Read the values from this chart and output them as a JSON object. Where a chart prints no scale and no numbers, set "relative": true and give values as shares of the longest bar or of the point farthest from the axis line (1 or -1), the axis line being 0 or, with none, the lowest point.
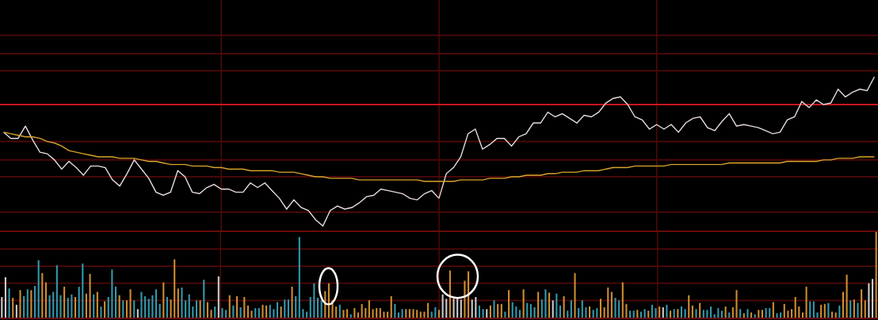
{
  "chart_data": [
    {
      "type": "line",
      "relative": true,
      "grid": "x",
      "categories": [
        null,
        null,
        null,
        null,
        null,
        null,
        null,
        null,
        null,
        null,
        null,
        null,
        null,
        null,
        null,
        null,
        null,
        null,
        null,
        null,
        null,
        null,
        null,
        null,
        null,
        null,
        null,
        null,
        null,
        null,
        null,
        null,
        null,
        null,
        null,
        null,
        null,
        null,
        null,
        null,
        null,
        null,
        null,
        null,
        null,
        null,
        null,
        null,
        null,
        null,
        null,
        null,
        null,
        null,
        null,
        null,
        null,
        null,
        null,
        null,
        null,
        null,
        null,
        null,
        null,
        null,
        null,
        null,
        null,
        null,
        null,
        null,
        null,
        null,
        null,
        null,
        null,
        null,
        null,
        null,
        null,
        null,
        null,
        null,
        null,
        null,
        null,
        null,
        null,
        null,
        null,
        null,
        null,
        null,
        null,
        null,
        null,
        null,
        null,
        null,
        null,
        null,
        null,
        null,
        null,
        null,
        null,
        null,
        null,
        null,
        null,
        null,
        null,
        null,
        null,
        null,
        null,
        null,
        null,
        null,
        null
      ],
      "series": [
        {
          "color": "#e8dada",
          "values": [
            0.64,
            0.6,
            0.6,
            0.68,
            0.59,
            0.51,
            0.5,
            0.46,
            0.4,
            0.45,
            0.41,
            0.36,
            0.42,
            0.42,
            0.41,
            0.33,
            0.29,
            0.37,
            0.46,
            0.4,
            0.34,
            0.25,
            0.23,
            0.25,
            0.39,
            0.35,
            0.25,
            0.24,
            0.28,
            0.3,
            0.27,
            0.27,
            0.25,
            0.25,
            0.31,
            0.28,
            0.31,
            0.26,
            0.21,
            0.14,
            0.2,
            0.15,
            0.13,
            0.07,
            0.03,
            0.13,
            0.16,
            0.14,
            0.15,
            0.18,
            0.22,
            0.23,
            0.27,
            0.26,
            0.25,
            0.24,
            0.21,
            0.2,
            0.24,
            0.26,
            0.21,
            0.37,
            0.41,
            0.48,
            0.63,
            0.66,
            0.53,
            0.56,
            0.6,
            0.6,
            0.55,
            0.61,
            0.63,
            0.7,
            0.7,
            0.77,
            0.74,
            0.76,
            0.73,
            0.7,
            0.75,
            0.74,
            0.77,
            0.83,
            0.86,
            0.87,
            0.82,
            0.74,
            0.72,
            0.66,
            0.69,
            0.66,
            0.69,
            0.64,
            0.7,
            0.73,
            0.74,
            0.67,
            0.65,
            0.71,
            0.76,
            0.68,
            0.69,
            0.68,
            0.67,
            0.65,
            0.63,
            0.64,
            0.72,
            0.74,
            0.84,
            0.8,
            0.85,
            0.82,
            0.83,
            0.92,
            0.87,
            0.9,
            0.92,
            0.91,
            1
          ]
        },
        {
          "color": "#d9a42a",
          "values": [
            0.64,
            0.63,
            0.62,
            0.61,
            0.61,
            0.6,
            0.58,
            0.57,
            0.55,
            0.52,
            0.51,
            0.5,
            0.49,
            0.48,
            0.48,
            0.48,
            0.47,
            0.47,
            0.47,
            0.46,
            0.45,
            0.45,
            0.44,
            0.43,
            0.43,
            0.43,
            0.42,
            0.42,
            0.42,
            0.41,
            0.41,
            0.4,
            0.4,
            0.4,
            0.39,
            0.39,
            0.39,
            0.39,
            0.38,
            0.38,
            0.38,
            0.37,
            0.36,
            0.35,
            0.35,
            0.34,
            0.34,
            0.34,
            0.34,
            0.33,
            0.33,
            0.33,
            0.33,
            0.33,
            0.33,
            0.33,
            0.33,
            0.33,
            0.32,
            0.32,
            0.32,
            0.32,
            0.32,
            0.33,
            0.33,
            0.33,
            0.33,
            0.34,
            0.34,
            0.34,
            0.35,
            0.35,
            0.36,
            0.36,
            0.36,
            0.37,
            0.37,
            0.38,
            0.38,
            0.38,
            0.39,
            0.39,
            0.39,
            0.4,
            0.41,
            0.41,
            0.41,
            0.42,
            0.42,
            0.42,
            0.42,
            0.42,
            0.43,
            0.43,
            0.43,
            0.43,
            0.43,
            0.43,
            0.43,
            0.43,
            0.44,
            0.44,
            0.44,
            0.44,
            0.44,
            0.44,
            0.44,
            0.44,
            0.45,
            0.45,
            0.45,
            0.45,
            0.45,
            0.46,
            0.46,
            0.47,
            0.47,
            0.47,
            0.48,
            0.48,
            0.48
          ]
        }
      ],
      "ref_lines": [
        {
          "axis": "y",
          "value": 0.82,
          "color": "#c8161d"
        },
        {
          "axis": "y",
          "value": 1.27,
          "color": "#520909"
        },
        {
          "axis": "y",
          "value": 1.15,
          "color": "#520909"
        },
        {
          "axis": "y",
          "value": 1.04,
          "color": "#520909"
        },
        {
          "axis": "y",
          "value": 0.58,
          "color": "#520909"
        },
        {
          "axis": "y",
          "value": 0.46,
          "color": "#520909"
        },
        {
          "axis": "y",
          "value": 0.35,
          "color": "#520909"
        },
        {
          "axis": "y",
          "value": 0.12,
          "color": "#520909"
        }
      ]
    },
    {
      "type": "bar",
      "relative": true,
      "grid": "x",
      "categories": [
        null,
        null,
        null,
        null,
        null,
        null,
        null,
        null,
        null,
        null,
        null,
        null,
        null,
        null,
        null,
        null,
        null,
        null,
        null,
        null,
        null,
        null,
        null,
        null,
        null,
        null,
        null,
        null,
        null,
        null,
        null,
        null,
        null,
        null,
        null,
        null,
        null,
        null,
        null,
        null,
        null,
        null,
        null,
        null,
        null,
        null,
        null,
        null,
        null,
        null,
        null,
        null,
        null,
        null,
        null,
        null,
        null,
        null,
        null,
        null,
        null,
        null,
        null,
        null,
        null,
        null,
        null,
        null,
        null,
        null,
        null,
        null,
        null,
        null,
        null,
        null,
        null,
        null,
        null,
        null,
        null,
        null,
        null,
        null,
        null,
        null,
        null,
        null,
        null,
        null,
        null,
        null,
        null,
        null,
        null,
        null,
        null,
        null,
        null,
        null,
        null,
        null,
        null,
        null,
        null,
        null,
        null,
        null,
        null,
        null,
        null,
        null,
        null,
        null,
        null,
        null,
        null,
        null,
        null,
        null,
        null,
        null,
        null,
        null,
        null,
        null,
        null,
        null,
        null,
        null,
        null,
        null,
        null,
        null,
        null,
        null,
        null,
        null,
        null,
        null,
        null,
        null,
        null,
        null,
        null,
        null,
        null,
        null,
        null,
        null,
        null,
        null,
        null,
        null,
        null,
        null,
        null,
        null,
        null,
        null,
        null,
        null,
        null,
        null,
        null,
        null,
        null,
        null,
        null,
        null,
        null,
        null,
        null,
        null,
        null,
        null,
        null,
        null,
        null,
        null,
        null,
        null,
        null,
        null,
        null,
        null,
        null,
        null,
        null,
        null,
        null,
        null,
        null,
        null,
        null,
        null,
        null,
        null,
        null,
        null,
        null,
        null,
        null,
        null,
        null,
        null,
        null,
        null,
        null,
        null,
        null,
        null,
        null,
        null,
        null,
        null,
        null,
        null,
        null,
        null,
        null,
        null,
        null,
        null,
        null,
        null,
        null,
        null,
        null,
        null,
        null,
        null,
        null,
        null,
        null,
        null,
        null,
        null,
        null
      ],
      "values": [
        0.24,
        0.47,
        0.34,
        0.23,
        0.15,
        0.32,
        0.25,
        0.33,
        0.32,
        0.37,
        0.67,
        0.52,
        0.41,
        0.26,
        0.3,
        0.61,
        0.26,
        0.36,
        0.23,
        0.27,
        0.24,
        0.36,
        0.63,
        0.28,
        0.51,
        0.27,
        0.3,
        0.13,
        0.19,
        0.24,
        0.56,
        0.36,
        0.26,
        0.2,
        0.2,
        0.33,
        0.2,
        0.1,
        0.3,
        0.25,
        0.22,
        0.26,
        0.33,
        0.16,
        0.41,
        0.24,
        0.21,
        0.68,
        0.34,
        0.35,
        0.2,
        0.27,
        0.13,
        0.2,
        0.2,
        0.44,
        0.18,
        0.09,
        0.13,
        0.48,
        0.11,
        0.09,
        0.26,
        0.14,
        0.25,
        0.12,
        0.24,
        0.14,
        0.08,
        0.11,
        0.11,
        0.15,
        0.14,
        0.15,
        0.1,
        0.18,
        0.13,
        0.21,
        0.21,
        0.36,
        0.25,
        0.94,
        0.1,
        0.07,
        0.24,
        0.4,
        0.23,
        0.2,
        0.31,
        0.4,
        0.2,
        0.13,
        0.15,
        0.09,
        0.1,
        0.04,
        0.11,
        0.06,
        0.16,
        0.11,
        0.2,
        0.1,
        0.11,
        0.11,
        0.07,
        0.07,
        0.25,
        0.16,
        0.06,
        0.1,
        0.1,
        0.1,
        0.1,
        0.09,
        0.07,
        0.07,
        0.17,
        0.07,
        0.12,
        0.09,
        0.27,
        0.22,
        0.55,
        0.22,
        0.22,
        0.21,
        0.43,
        0.54,
        0.21,
        0.24,
        0.14,
        0.1,
        0.1,
        0.14,
        0.2,
        0.16,
        0.16,
        0.07,
        0.32,
        0.18,
        0.13,
        0.09,
        0.33,
        0.17,
        0.16,
        0.12,
        0.3,
        0.21,
        0.33,
        0.29,
        0.2,
        0.28,
        0.14,
        0.25,
        0.08,
        0.2,
        0.52,
        0.11,
        0.2,
        0.12,
        0.13,
        0.09,
        0.11,
        0.22,
        0.12,
        0.35,
        0.3,
        0.23,
        0.2,
        0.41,
        0.16,
        0.08,
        0.08,
        0.09,
        0.07,
        0.1,
        0.08,
        0.15,
        0.11,
        0.13,
        0.12,
        0.15,
        0.08,
        0.1,
        0.1,
        0.13,
        0.1,
        0.26,
        0.14,
        0.1,
        0.17,
        0.09,
        0.09,
        0.13,
        0.04,
        0.11,
        0.08,
        0.13,
        0.06,
        0.12,
        0.32,
        0.1,
        0.05,
        0.1,
        0.06,
        0.04,
        0.09,
        0.09,
        0.11,
        0.11,
        0.18,
        0.05,
        0.06,
        0.16,
        0.08,
        0.1,
        0.24,
        0.13,
        0.06,
        0.36,
        0.19,
        0.19,
        0.06,
        0.15,
        0.16,
        0.17,
        0.07,
        0.06,
        0.14,
        0.3,
        0.5,
        0.2,
        0.21,
        0.17,
        0.33,
        0.2,
        0.4,
        0.45,
        1
      ],
      "colors": [
        "#cccccc",
        "#cccccc",
        "#3399ad",
        "#cf8d33",
        "#cccccc",
        "#cf8d33",
        "#3399ad",
        "#3399ad",
        "#cf8d33",
        "#3399ad",
        "#3399ad",
        "#cf8d33",
        "#cf8d33",
        "#3399ad",
        "#3399ad",
        "#3399ad",
        "#3399ad",
        "#cf8d33",
        "#3399ad",
        "#3399ad",
        "#cf8d33",
        "#3399ad",
        "#3399ad",
        "#cf8d33",
        "#cf8d33",
        "#3399ad",
        "#cf8d33",
        "#3399ad",
        "#cf8d33",
        "#3399ad",
        "#3399ad",
        "#3399ad",
        "#cf8d33",
        "#3399ad",
        "#cf8d33",
        "#cf8d33",
        "#3399ad",
        "#cccccc",
        "#3399ad",
        "#3399ad",
        "#3399ad",
        "#3399ad",
        "#3399ad",
        "#3399ad",
        "#cf8d33",
        "#3399ad",
        "#cf8d33",
        "#cf8d33",
        "#cf8d33",
        "#3399ad",
        "#3399ad",
        "#3399ad",
        "#3399ad",
        "#3399ad",
        "#cf8d33",
        "#3399ad",
        "#cf8d33",
        "#cf8d33",
        "#3399ad",
        "#cccccc",
        "#3399ad",
        "#3399ad",
        "#cf8d33",
        "#3399ad",
        "#cf8d33",
        "#3399ad",
        "#cf8d33",
        "#cf8d33",
        "#cf8d33",
        "#3399ad",
        "#3399ad",
        "#cf8d33",
        "#cf8d33",
        "#3399ad",
        "#3399ad",
        "#3399ad",
        "#cf8d33",
        "#3399ad",
        "#3399ad",
        "#cf8d33",
        "#3399ad",
        "#3399ad",
        "#3399ad",
        "#3399ad",
        "#3399ad",
        "#3399ad",
        "#3399ad",
        "#3399ad",
        "#cf8d33",
        "#cf8d33",
        "#cf8d33",
        "#cf8d33",
        "#3399ad",
        "#cf8d33",
        "#cf8d33",
        "#3399ad",
        "#cf8d33",
        "#cf8d33",
        "#cf8d33",
        "#cf8d33",
        "#cf8d33",
        "#cf8d33",
        "#cf8d33",
        "#cf8d33",
        "#cf8d33",
        "#cf8d33",
        "#cf8d33",
        "#3399ad",
        "#3399ad",
        "#3399ad",
        "#cf8d33",
        "#cf8d33",
        "#cf8d33",
        "#cf8d33",
        "#cf8d33",
        "#cf8d33",
        "#cf8d33",
        "#3399ad",
        "#3399ad",
        "#cf8d33",
        "#cccccc",
        "#cccccc",
        "#cf8d33",
        "#cccccc",
        "#cccccc",
        "#cccccc",
        "#cf8d33",
        "#cf8d33",
        "#cccccc",
        "#cccccc",
        "#3399ad",
        "#3399ad",
        "#cccccc",
        "#cf8d33",
        "#3399ad",
        "#cf8d33",
        "#cf8d33",
        "#3399ad",
        "#cf8d33",
        "#3399ad",
        "#3399ad",
        "#3399ad",
        "#cf8d33",
        "#3399ad",
        "#3399ad",
        "#3399ad",
        "#cf8d33",
        "#3399ad",
        "#3399ad",
        "#cf8d33",
        "#cccccc",
        "#3399ad",
        "#3399ad",
        "#cf8d33",
        "#3399ad",
        "#3399ad",
        "#cf8d33",
        "#3399ad",
        "#3399ad",
        "#3399ad",
        "#cf8d33",
        "#3399ad",
        "#3399ad",
        "#cf8d33",
        "#cf8d33",
        "#cf8d33",
        "#cf8d33",
        "#3399ad",
        "#3399ad",
        "#cf8d33",
        "#cf8d33",
        "#3399ad",
        "#3399ad",
        "#cf8d33",
        "#3399ad",
        "#3399ad",
        "#cf8d33",
        "#3399ad",
        "#3399ad",
        "#cf8d33",
        "#cccccc",
        "#3399ad",
        "#cf8d33",
        "#3399ad",
        "#cf8d33",
        "#3399ad",
        "#3399ad",
        "#cf8d33",
        "#cf8d33",
        "#3399ad",
        "#cf8d33",
        "#3399ad",
        "#3399ad",
        "#3399ad",
        "#3399ad",
        "#3399ad",
        "#3399ad",
        "#cf8d33",
        "#3399ad",
        "#cf8d33",
        "#cf8d33",
        "#3399ad",
        "#cf8d33",
        "#3399ad",
        "#cf8d33",
        "#3399ad",
        "#cf8d33",
        "#cf8d33",
        "#3399ad",
        "#3399ad",
        "#cf8d33",
        "#3399ad",
        "#3399ad",
        "#cf8d33",
        "#cf8d33",
        "#cf8d33",
        "#cf8d33",
        "#cf8d33",
        "#cf8d33",
        "#cf8d33",
        "#3399ad",
        "#3399ad",
        "#3399ad",
        "#cf8d33",
        "#cf8d33",
        "#3399ad",
        "#cf8d33",
        "#cf8d33",
        "#3399ad",
        "#cf8d33",
        "#cf8d33",
        "#3399ad",
        "#cf8d33",
        "#3399ad",
        "#cf8d33",
        "#cf8d33",
        "#cccccc",
        "#cccccc",
        "#cf8d33"
      ],
      "ref_lines": [
        {
          "axis": "y",
          "value": 0.8,
          "color": "#520909"
        },
        {
          "axis": "y",
          "value": 0.6,
          "color": "#520909"
        },
        {
          "axis": "y",
          "value": 0.4,
          "color": "#520909"
        },
        {
          "axis": "y",
          "value": 0.2,
          "color": "#520909"
        }
      ]
    }
  ]
}
